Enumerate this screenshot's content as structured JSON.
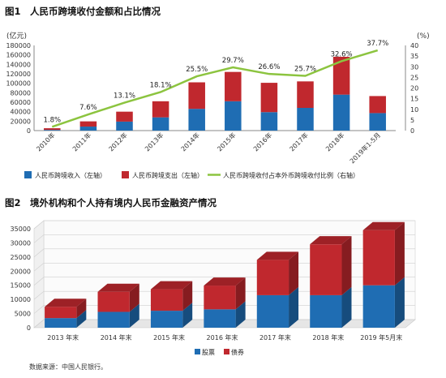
{
  "chart_data": [
    {
      "type": "bar",
      "title": "人民币跨境收付金额和占比情况",
      "fig_label": "图1",
      "stacked": true,
      "y_left_label": "(亿元)",
      "y_right_label": "(%)",
      "ylim_left": [
        0,
        180000
      ],
      "ylim_right": [
        0,
        40
      ],
      "y_left_ticks": [
        "0",
        "20000",
        "40000",
        "60000",
        "80000",
        "100000",
        "120000",
        "140000",
        "160000",
        "180000"
      ],
      "y_right_ticks": [
        "0",
        "5",
        "10",
        "15",
        "20",
        "25",
        "30",
        "35",
        "40"
      ],
      "categories": [
        "2010年",
        "2011年",
        "2012年",
        "2013年",
        "2014年",
        "2015年",
        "2016年",
        "2017年",
        "2018年",
        "2019年1-5月"
      ],
      "series": [
        {
          "name": "人民币跨境收入（左轴）",
          "kind": "bar",
          "color": "#1f6db3",
          "values": [
            1500,
            8500,
            19000,
            28000,
            46000,
            62000,
            39000,
            48000,
            76000,
            37000
          ]
        },
        {
          "name": "人民币跨境支出（左轴）",
          "kind": "bar",
          "color": "#c0282e",
          "values": [
            3500,
            11000,
            21000,
            34000,
            56000,
            62000,
            62000,
            56000,
            80000,
            36000
          ]
        },
        {
          "name": "人民币跨境收付占本外币跨境收付比例（右轴）",
          "kind": "line",
          "color": "#8cc43f",
          "values": [
            1.8,
            7.6,
            13.1,
            18.1,
            25.5,
            29.7,
            26.6,
            25.7,
            32.6,
            37.7
          ],
          "labels": [
            "1.8%",
            "7.6%",
            "13.1%",
            "18.1%",
            "25.5%",
            "29.7%",
            "26.6%",
            "25.7%",
            "32.6%",
            "37.7%"
          ]
        }
      ],
      "legend_position": "bottom"
    },
    {
      "type": "bar",
      "title": "境外机构和个人持有境内人民币金融资产情况",
      "fig_label": "图2",
      "stacked": true,
      "style": "3d",
      "ylim": [
        0,
        35000
      ],
      "y_ticks": [
        "0",
        "5000",
        "10000",
        "15000",
        "20000",
        "25000",
        "30000",
        "35000"
      ],
      "categories": [
        "2013 年末",
        "2014 年末",
        "2015 年末",
        "2016 年末",
        "2017 年末",
        "2018 年末",
        "2019 年5月末"
      ],
      "series": [
        {
          "name": "股票",
          "color": "#1f6db3",
          "values": [
            3400,
            5600,
            6000,
            6500,
            11500,
            11500,
            15000
          ]
        },
        {
          "name": "债券",
          "color": "#c0282e",
          "values": [
            4000,
            7100,
            7600,
            8400,
            12500,
            18000,
            19500
          ]
        }
      ],
      "legend_position": "bottom",
      "source": "数据来源：中国人民银行。"
    }
  ]
}
